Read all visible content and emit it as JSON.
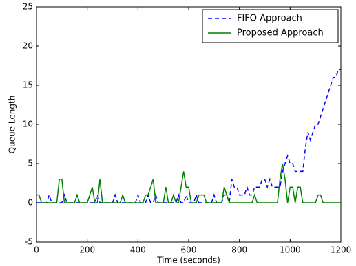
{
  "chart_data": {
    "type": "line",
    "x_label": "Time (seconds)",
    "y_label": "Queue Length",
    "x": [
      0,
      10,
      20,
      30,
      40,
      50,
      60,
      70,
      80,
      90,
      100,
      110,
      120,
      130,
      140,
      150,
      160,
      170,
      180,
      190,
      200,
      210,
      220,
      230,
      240,
      250,
      260,
      270,
      280,
      290,
      300,
      310,
      320,
      330,
      340,
      350,
      360,
      370,
      380,
      390,
      400,
      410,
      420,
      430,
      440,
      450,
      460,
      470,
      480,
      490,
      500,
      510,
      520,
      530,
      540,
      550,
      560,
      570,
      580,
      590,
      600,
      610,
      620,
      630,
      640,
      650,
      660,
      670,
      680,
      690,
      700,
      710,
      720,
      730,
      740,
      750,
      760,
      770,
      780,
      790,
      800,
      810,
      820,
      830,
      840,
      850,
      860,
      870,
      880,
      890,
      900,
      910,
      920,
      930,
      940,
      950,
      960,
      970,
      980,
      990,
      1000,
      1010,
      1020,
      1030,
      1040,
      1050,
      1060,
      1070,
      1080,
      1090,
      1100,
      1110,
      1120,
      1130,
      1140,
      1150,
      1160,
      1170,
      1180,
      1190,
      1200
    ],
    "series": [
      {
        "name": "FIFO Approach",
        "color": "#0000ff",
        "dashed": true,
        "values": [
          0,
          0,
          0,
          0,
          0,
          1,
          0,
          0,
          0,
          0,
          0,
          1,
          0,
          0,
          0,
          0,
          0,
          0,
          0,
          0,
          0,
          0,
          0,
          0,
          1,
          0,
          0,
          0,
          0,
          0,
          0,
          1,
          0,
          0,
          0,
          0,
          0,
          0,
          0,
          0,
          1,
          0,
          0,
          0,
          1,
          0,
          0,
          1,
          0,
          0,
          0,
          0,
          0,
          0,
          0,
          0,
          1,
          0,
          0,
          1,
          0,
          0,
          0,
          1,
          0,
          0,
          0,
          0,
          0,
          0,
          1,
          0,
          0,
          0,
          1,
          1,
          0,
          3,
          2,
          2,
          1,
          1,
          1,
          2,
          1,
          1,
          2,
          2,
          2,
          3,
          3,
          2,
          3,
          2,
          2,
          2,
          2,
          4,
          5,
          6,
          5,
          5,
          4,
          4,
          4,
          4,
          7,
          9,
          8,
          9,
          10,
          10,
          11,
          12,
          13,
          14,
          15,
          16,
          16,
          17,
          17
        ]
      },
      {
        "name": "Proposed Approach",
        "color": "#008000",
        "dashed": false,
        "values": [
          1,
          1,
          0,
          0,
          0,
          0,
          0,
          0,
          0,
          3,
          3,
          0,
          0,
          0,
          0,
          0,
          1,
          0,
          0,
          0,
          0,
          1,
          2,
          0,
          0,
          3,
          0,
          0,
          0,
          0,
          0,
          0,
          0,
          0,
          1,
          0,
          0,
          0,
          0,
          0,
          0,
          0,
          0,
          1,
          1,
          2,
          3,
          0,
          0,
          0,
          0,
          2,
          0,
          0,
          1,
          0,
          0,
          2,
          4,
          2,
          2,
          0,
          0,
          0,
          1,
          1,
          1,
          0,
          0,
          0,
          0,
          0,
          0,
          0,
          2,
          1,
          0,
          0,
          0,
          0,
          0,
          0,
          0,
          0,
          0,
          0,
          1,
          0,
          0,
          0,
          0,
          0,
          0,
          0,
          0,
          0,
          3,
          5,
          3,
          0,
          2,
          2,
          0,
          2,
          2,
          0,
          0,
          0,
          0,
          0,
          0,
          1,
          1,
          0,
          0,
          0,
          0,
          0,
          0,
          0,
          0
        ]
      }
    ],
    "xlim": [
      0,
      1200
    ],
    "xticks": [
      0,
      200,
      400,
      600,
      800,
      1000,
      1200
    ],
    "ylim": [
      -5,
      25
    ],
    "yticks": [
      -5,
      0,
      5,
      10,
      15,
      20,
      25
    ],
    "legend": "upper right"
  }
}
